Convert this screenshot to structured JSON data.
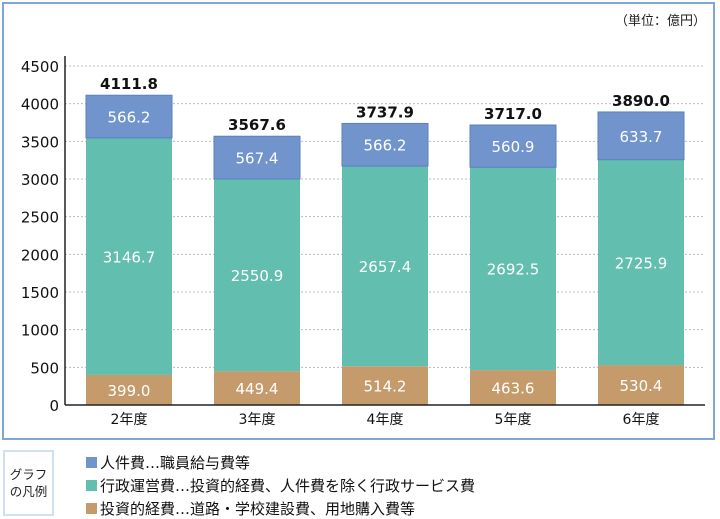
{
  "unit_note": "（単位：億円）",
  "colors": {
    "personnel": "#7194cd",
    "admin": "#62bfaf",
    "investment": "#c59b6c",
    "frame": "#7fa6d6"
  },
  "chart_data": {
    "type": "bar",
    "stacked": true,
    "categories": [
      "2年度",
      "3年度",
      "4年度",
      "5年度",
      "6年度"
    ],
    "series": [
      {
        "name": "投資的経費…道路・学校建設費、用地購入費等",
        "key": "investment",
        "values": [
          399.0,
          449.4,
          514.2,
          463.6,
          530.4
        ]
      },
      {
        "name": "行政運営費…投資的経費、人件費を除く行政サービス費",
        "key": "admin",
        "values": [
          3146.7,
          2550.9,
          2657.4,
          2692.5,
          2725.9
        ]
      },
      {
        "name": "人件費…職員給与費等",
        "key": "personnel",
        "values": [
          566.2,
          567.4,
          566.2,
          560.9,
          633.7
        ]
      }
    ],
    "totals": [
      "4111.8",
      "3567.6",
      "3737.9",
      "3717.0",
      "3890.0"
    ],
    "ylim": [
      0,
      4500
    ],
    "yticks": [
      0,
      500,
      1000,
      1500,
      2000,
      2500,
      3000,
      3500,
      4000,
      4500
    ],
    "grid": true,
    "legend_placement": "bottom"
  },
  "legend": {
    "title": "グラフの凡例",
    "items": [
      "人件費…職員給与費等",
      "行政運営費…投資的経費、人件費を除く行政サービス費",
      "投資的経費…道路・学校建設費、用地購入費等"
    ]
  }
}
